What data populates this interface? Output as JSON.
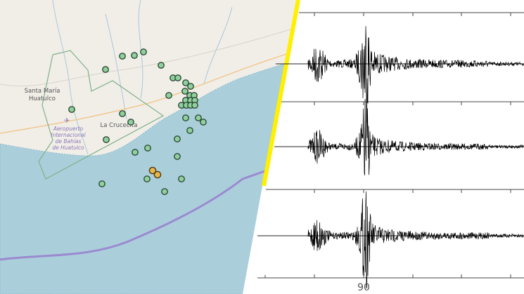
{
  "map": {
    "labels": {
      "town1_line1": "Santa María",
      "town1_line2": "Huatulco",
      "town2": "La Crucecita",
      "airport_line1": "Aeropuerto",
      "airport_line2": "Internacional",
      "airport_line3": "de Bahías",
      "airport_line4": "de Huatulco"
    },
    "icons": [
      "airport-plane-icon"
    ],
    "colors": {
      "land": "#f1eee8",
      "sea": "#aacfdb",
      "epicenter": "#8fd19e",
      "epicenter_major": "#e8b64a",
      "trench": "#9b8ad0",
      "boundary": "#7fb08a",
      "divider": "#ffef00"
    }
  },
  "seismogram": {
    "x_tick_label": "90",
    "traces": 3
  }
}
